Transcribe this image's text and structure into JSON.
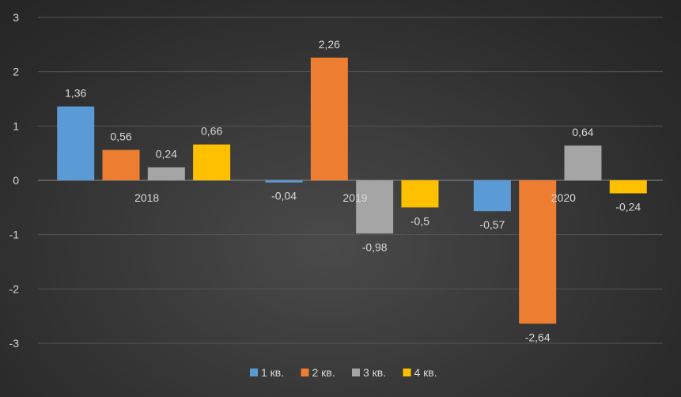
{
  "chart_data": {
    "type": "bar",
    "categories": [
      "2018",
      "2019",
      "2020"
    ],
    "series": [
      {
        "name": "1 кв.",
        "color": "#5b9bd5",
        "values": [
          1.36,
          -0.04,
          -0.57
        ],
        "labels": [
          "1,36",
          "-0,04",
          "-0,57"
        ]
      },
      {
        "name": "2 кв.",
        "color": "#ed7d31",
        "values": [
          0.56,
          2.26,
          -2.64
        ],
        "labels": [
          "0,56",
          "2,26",
          "-2,64"
        ]
      },
      {
        "name": "3 кв.",
        "color": "#a5a5a5",
        "values": [
          0.24,
          -0.98,
          0.64
        ],
        "labels": [
          "0,24",
          "-0,98",
          "0,64"
        ]
      },
      {
        "name": "4 кв.",
        "color": "#ffc000",
        "values": [
          0.66,
          -0.5,
          -0.24
        ],
        "labels": [
          "0,66",
          "-0,5",
          "-0,24"
        ]
      }
    ],
    "y_ticks": [
      3,
      2,
      1,
      0,
      -1,
      -2,
      -3
    ],
    "ylim": [
      -3,
      3
    ],
    "grid": true,
    "legend_position": "bottom-center",
    "title": "",
    "xlabel": "",
    "ylabel": ""
  }
}
